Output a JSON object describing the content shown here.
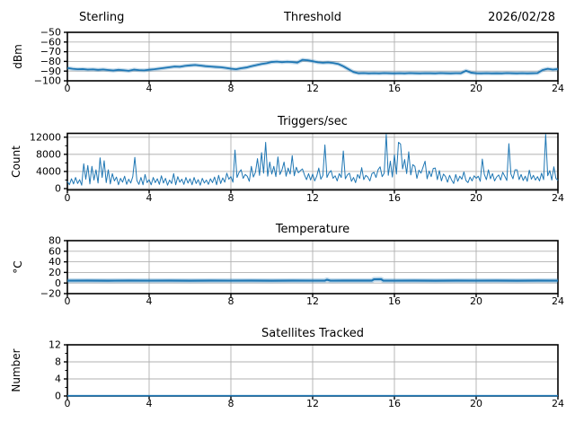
{
  "colors": {
    "line": "#1f77b4",
    "grid": "#b0b0b0",
    "spine": "#000000",
    "text": "#000000",
    "background": "#ffffff"
  },
  "chart_data": [
    {
      "id": "threshold",
      "type": "line",
      "title": "Threshold",
      "title_left": "Sterling",
      "title_right": "2026/02/28",
      "ylabel": "dBm",
      "xlabel": "",
      "xlim": [
        0,
        24
      ],
      "ylim": [
        -100,
        -50
      ],
      "xticks": [
        0,
        4,
        8,
        12,
        16,
        20,
        24
      ],
      "xtick_labels": [
        "0",
        "4",
        "8",
        "12",
        "16",
        "20",
        "24"
      ],
      "yticks": [
        -100,
        -90,
        -80,
        -70,
        -60,
        -50
      ],
      "ytick_labels": [
        "−100",
        "−90",
        "−80",
        "−70",
        "−60",
        "−50"
      ],
      "yminor": [],
      "grid": true,
      "series": [
        {
          "name": "rssi-threshold-dbm",
          "x0": 0,
          "dx": 0.25,
          "width": 1.8,
          "halo": true,
          "values": [
            -86.8,
            -87.6,
            -88.1,
            -87.9,
            -88.4,
            -88.2,
            -88.7,
            -88.3,
            -88.9,
            -89.4,
            -88.7,
            -89.1,
            -89.7,
            -88.5,
            -89.0,
            -89.2,
            -88.6,
            -88.1,
            -87.4,
            -86.7,
            -86.0,
            -85.3,
            -85.5,
            -84.6,
            -84.1,
            -83.7,
            -84.3,
            -84.9,
            -85.3,
            -85.7,
            -86.0,
            -86.7,
            -87.5,
            -88.1,
            -87.0,
            -86.3,
            -85.0,
            -83.8,
            -82.6,
            -81.8,
            -80.6,
            -80.2,
            -80.8,
            -80.3,
            -80.7,
            -81.2,
            -78.4,
            -78.8,
            -79.8,
            -80.9,
            -81.4,
            -81.0,
            -81.6,
            -82.6,
            -85.0,
            -88.0,
            -91.0,
            -92.2,
            -92.0,
            -92.3,
            -92.1,
            -92.3,
            -92.0,
            -92.2,
            -92.3,
            -92.1,
            -92.3,
            -92.0,
            -92.2,
            -92.3,
            -92.1,
            -92.2,
            -92.3,
            -92.0,
            -92.2,
            -92.3,
            -92.1,
            -92.2,
            -89.6,
            -91.6,
            -92.2,
            -92.3,
            -92.1,
            -92.3,
            -92.2,
            -92.3,
            -92.0,
            -92.2,
            -92.3,
            -92.1,
            -92.3,
            -92.2,
            -92.0,
            -88.9,
            -87.6,
            -88.4,
            -87.9
          ]
        }
      ]
    },
    {
      "id": "triggers",
      "type": "line",
      "title": "Triggers/sec",
      "ylabel": "Count",
      "xlabel": "",
      "xlim": [
        0,
        24
      ],
      "ylim": [
        -300,
        12900
      ],
      "xticks": [
        0,
        4,
        8,
        12,
        16,
        20,
        24
      ],
      "xtick_labels": [
        "0",
        "4",
        "8",
        "12",
        "16",
        "20",
        "24"
      ],
      "yticks": [
        0,
        4000,
        8000,
        12000
      ],
      "ytick_labels": [
        "0",
        "4000",
        "8000",
        "12000"
      ],
      "yminor": [
        2000,
        6000,
        10000
      ],
      "grid": true,
      "series": [
        {
          "name": "trigger-count",
          "x0": 0,
          "dx": 0.1,
          "width": 1,
          "halo": false,
          "values": [
            1700,
            900,
            2300,
            1100,
            2600,
            1200,
            2100,
            800,
            5800,
            2200,
            5400,
            1100,
            5200,
            2000,
            4400,
            1300,
            7200,
            2600,
            6500,
            1400,
            4400,
            1100,
            3500,
            1800,
            2700,
            900,
            2400,
            1500,
            2900,
            1000,
            2200,
            1300,
            2800,
            7300,
            1900,
            1000,
            2600,
            900,
            3300,
            1400,
            2100,
            900,
            2600,
            1400,
            2300,
            1000,
            3000,
            1300,
            2400,
            800,
            2000,
            1200,
            3500,
            900,
            2800,
            1500,
            2200,
            1000,
            2600,
            1300,
            2300,
            900,
            2600,
            1200,
            2100,
            800,
            2400,
            1300,
            2000,
            1000,
            2300,
            1400,
            2700,
            900,
            3100,
            1200,
            2500,
            1500,
            3600,
            2200,
            2800,
            1500,
            9000,
            2600,
            3800,
            4400,
            2400,
            3300,
            2900,
            1700,
            5200,
            2700,
            3800,
            7000,
            3100,
            8400,
            3600,
            10800,
            2900,
            6200,
            3400,
            5200,
            2800,
            7400,
            3300,
            4400,
            6200,
            2900,
            4800,
            3400,
            7700,
            3000,
            5000,
            3700,
            4200,
            4600,
            3200,
            2100,
            3500,
            2000,
            3400,
            1800,
            2900,
            4800,
            2200,
            3100,
            10200,
            2600,
            3700,
            4200,
            2400,
            3000,
            1800,
            3500,
            2600,
            8800,
            2300,
            3200,
            3600,
            1700,
            2600,
            1400,
            3300,
            2400,
            4900,
            2100,
            3100,
            2700,
            1800,
            3500,
            3800,
            2600,
            4400,
            5100,
            2800,
            3600,
            12700,
            3100,
            6400,
            2700,
            7900,
            3400,
            10800,
            10400,
            4600,
            6800,
            3500,
            8600,
            3200,
            5600,
            5200,
            2400,
            4300,
            3600,
            5000,
            6400,
            2300,
            4100,
            2800,
            4700,
            4800,
            2100,
            4200,
            1800,
            3400,
            2800,
            1500,
            3100,
            2000,
            1200,
            3300,
            1700,
            2900,
            2200,
            3900,
            1900,
            1400,
            2700,
            1800,
            3000,
            2400,
            2900,
            1700,
            6900,
            3300,
            2100,
            4400,
            2300,
            3500,
            1800,
            2700,
            3200,
            2000,
            3800,
            2900,
            1900,
            10500,
            3400,
            2300,
            4400,
            4400,
            2100,
            3300,
            1900,
            2900,
            1700,
            4300,
            2200,
            3100,
            2000,
            2800,
            1800,
            3600,
            2100,
            12700,
            3000,
            4200,
            2000,
            5100,
            2400,
            1900
          ]
        }
      ]
    },
    {
      "id": "temperature",
      "type": "line",
      "title": "Temperature",
      "ylabel": "°C",
      "xlabel": "",
      "xlim": [
        0,
        24
      ],
      "ylim": [
        -20,
        80
      ],
      "xticks": [
        0,
        4,
        8,
        12,
        16,
        20,
        24
      ],
      "xtick_labels": [
        "0",
        "4",
        "8",
        "12",
        "16",
        "20",
        "24"
      ],
      "yticks": [
        -20,
        0,
        20,
        40,
        60,
        80
      ],
      "ytick_labels": [
        "−20",
        "0",
        "20",
        "40",
        "60",
        "80"
      ],
      "yminor": [],
      "grid": true,
      "series": [
        {
          "name": "temperature-c",
          "points": [
            [
              0,
              4.5
            ],
            [
              1,
              4.6
            ],
            [
              2,
              4.4
            ],
            [
              3,
              4.6
            ],
            [
              4,
              4.5
            ],
            [
              5,
              4.6
            ],
            [
              6,
              4.4
            ],
            [
              7,
              4.6
            ],
            [
              8,
              4.5
            ],
            [
              9,
              4.6
            ],
            [
              10,
              4.4
            ],
            [
              11,
              4.6
            ],
            [
              12,
              4.5
            ],
            [
              12.6,
              4.6
            ],
            [
              12.7,
              6.2
            ],
            [
              12.85,
              4.6
            ],
            [
              13,
              4.5
            ],
            [
              14,
              4.6
            ],
            [
              14.9,
              4.6
            ],
            [
              15.0,
              7.0
            ],
            [
              15.35,
              7.2
            ],
            [
              15.45,
              4.6
            ],
            [
              16,
              4.5
            ],
            [
              17,
              4.6
            ],
            [
              18,
              4.4
            ],
            [
              19,
              4.6
            ],
            [
              20,
              4.5
            ],
            [
              21,
              4.6
            ],
            [
              22,
              4.4
            ],
            [
              23,
              4.6
            ],
            [
              24,
              4.5
            ]
          ],
          "width": 2.2,
          "halo": true
        }
      ]
    },
    {
      "id": "satellites",
      "type": "line",
      "title": "Satellites Tracked",
      "ylabel": "Number",
      "xlabel": "",
      "xlim": [
        0,
        24
      ],
      "ylim": [
        0,
        12
      ],
      "xticks": [
        0,
        4,
        8,
        12,
        16,
        20,
        24
      ],
      "xtick_labels": [
        "0",
        "4",
        "8",
        "12",
        "16",
        "20",
        "24"
      ],
      "yticks": [
        0,
        4,
        8,
        12
      ],
      "ytick_labels": [
        "0",
        "4",
        "8",
        "12"
      ],
      "yminor": [
        2,
        6,
        10
      ],
      "grid": true,
      "series": [
        {
          "name": "satellites-tracked",
          "points": [
            [
              0,
              0.05
            ],
            [
              24,
              0.05
            ]
          ],
          "width": 1.8,
          "halo": false
        }
      ]
    }
  ]
}
